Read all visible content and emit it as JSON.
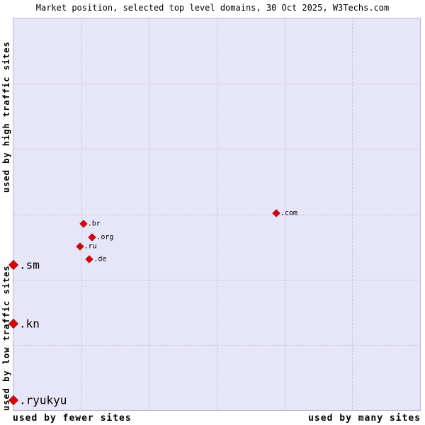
{
  "title": "Market position, selected top level domains, 30 Oct 2025, W3Techs.com",
  "axes": {
    "y_top": "used by high traffic sites",
    "y_bottom": "used by low traffic sites",
    "x_left": "used by fewer sites",
    "x_right": "used by many sites"
  },
  "colors": {
    "plot_background": "#e7e5f8",
    "grid": "#c3bfe2",
    "plot_border": "#b9b5d6",
    "point": "#dd0000"
  },
  "chart_data": {
    "type": "scatter",
    "title": "Market position, selected top level domains, 30 Oct 2025, W3Techs.com",
    "x_axis": {
      "label_left": "used by fewer sites",
      "label_right": "used by many sites",
      "scale": "qualitative"
    },
    "y_axis": {
      "label_top": "used by high traffic sites",
      "label_bottom": "used by low traffic sites",
      "scale": "qualitative"
    },
    "grid": {
      "columns": 6,
      "rows": 6,
      "style": "dotted"
    },
    "points": [
      {
        "label": ".com",
        "x_pct": 64.6,
        "y_pct": 49.7,
        "size": "small"
      },
      {
        "label": ".br",
        "x_pct": 17.2,
        "y_pct": 52.4,
        "size": "small"
      },
      {
        "label": ".org",
        "x_pct": 19.4,
        "y_pct": 55.9,
        "size": "small"
      },
      {
        "label": ".ru",
        "x_pct": 16.3,
        "y_pct": 58.2,
        "size": "small"
      },
      {
        "label": ".de",
        "x_pct": 18.7,
        "y_pct": 61.4,
        "size": "small"
      },
      {
        "label": ".sm",
        "x_pct": 0,
        "y_pct": 62.9,
        "size": "large"
      },
      {
        "label": ".kn",
        "x_pct": 0,
        "y_pct": 78.0,
        "size": "large"
      },
      {
        "label": ".ryukyu",
        "x_pct": 0,
        "y_pct": 97.5,
        "size": "large"
      }
    ]
  }
}
